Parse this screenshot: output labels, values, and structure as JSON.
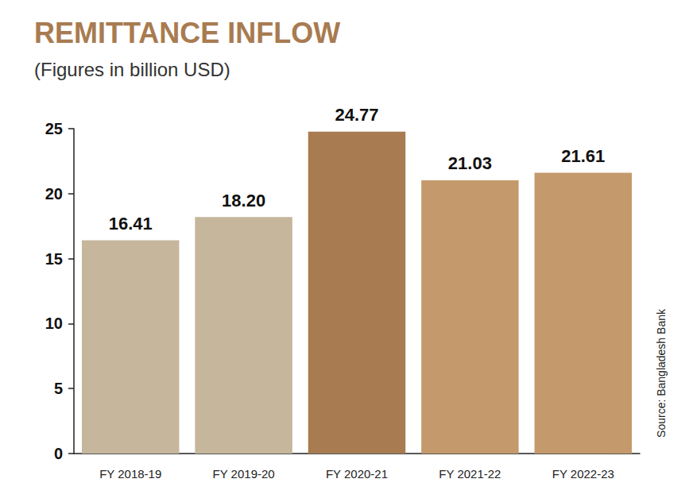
{
  "chart_data": {
    "type": "bar",
    "title": "REMITTANCE INFLOW",
    "subtitle": "(Figures in billion USD)",
    "source": "Source: Bangladesh Bank",
    "categories": [
      "FY 2018-19",
      "FY 2019-20",
      "FY 2020-21",
      "FY 2021-22",
      "FY 2022-23"
    ],
    "values": [
      16.41,
      18.2,
      24.77,
      21.03,
      21.61
    ],
    "value_labels": [
      "16.41",
      "18.20",
      "24.77",
      "21.03",
      "21.61"
    ],
    "colors": [
      "#c5b69c",
      "#c5b69c",
      "#a87b50",
      "#c4996b",
      "#c4996b"
    ],
    "ylim": [
      0,
      25
    ],
    "yticks": [
      0,
      5,
      10,
      15,
      20,
      25
    ],
    "grid": false,
    "data_labels": true
  }
}
